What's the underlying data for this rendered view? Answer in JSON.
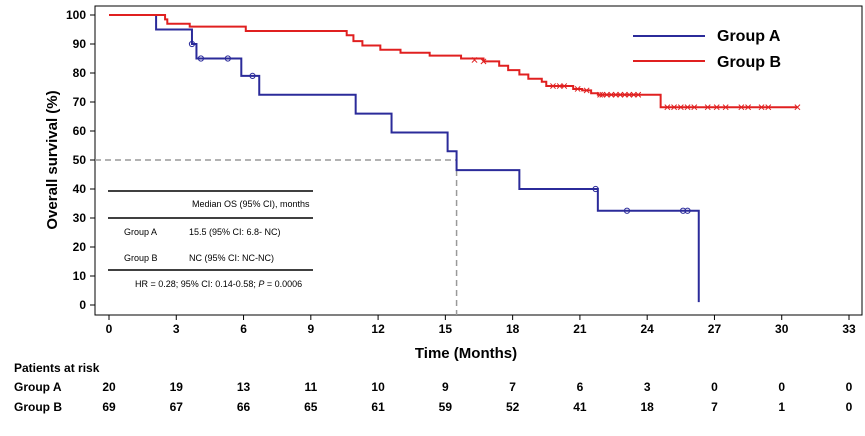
{
  "chart_data": {
    "type": "line",
    "subtype": "kaplan-meier",
    "xlabel": "Time (Months)",
    "ylabel": "Overall survival (%)",
    "xlim": [
      0,
      33
    ],
    "ylim": [
      0,
      100
    ],
    "x_ticks": [
      0,
      3,
      6,
      9,
      12,
      15,
      18,
      21,
      24,
      27,
      30,
      33
    ],
    "y_ticks": [
      0,
      10,
      20,
      30,
      40,
      50,
      60,
      70,
      80,
      90,
      100
    ],
    "grid": false,
    "legend_position": "top-right",
    "median_reference": {
      "y": 50,
      "x": 15.5
    },
    "series": [
      {
        "name": "Group A",
        "color": "#2b2b9a",
        "steps": [
          [
            0,
            100
          ],
          [
            2.1,
            95
          ],
          [
            3.7,
            90
          ],
          [
            3.9,
            85
          ],
          [
            5.9,
            79
          ],
          [
            6.7,
            72.5
          ],
          [
            11.0,
            66
          ],
          [
            12.6,
            59.5
          ],
          [
            15.1,
            53
          ],
          [
            15.5,
            46.5
          ],
          [
            18.3,
            40
          ],
          [
            21.8,
            32.5
          ],
          [
            26.3,
            32.5
          ],
          [
            26.3,
            1
          ]
        ],
        "censored": [
          [
            3.7,
            90
          ],
          [
            4.1,
            85
          ],
          [
            5.3,
            85
          ],
          [
            6.4,
            79
          ],
          [
            21.7,
            40
          ],
          [
            23.1,
            32.5
          ],
          [
            25.6,
            32.5
          ],
          [
            25.8,
            32.5
          ]
        ]
      },
      {
        "name": "Group B",
        "color": "#e02020",
        "steps": [
          [
            0,
            100
          ],
          [
            2.5,
            98.5
          ],
          [
            2.6,
            97
          ],
          [
            3.6,
            96
          ],
          [
            6.1,
            94.5
          ],
          [
            10.6,
            93
          ],
          [
            10.9,
            91
          ],
          [
            11.3,
            89.5
          ],
          [
            12.1,
            88
          ],
          [
            13.0,
            87
          ],
          [
            14.3,
            86
          ],
          [
            15.7,
            85
          ],
          [
            16.7,
            84
          ],
          [
            17.4,
            82.5
          ],
          [
            17.8,
            81
          ],
          [
            18.3,
            79.5
          ],
          [
            18.7,
            78
          ],
          [
            19.3,
            77
          ],
          [
            19.5,
            75.5
          ],
          [
            20.7,
            74.5
          ],
          [
            21.1,
            74
          ],
          [
            21.5,
            73
          ],
          [
            21.8,
            72.5
          ],
          [
            24.6,
            72.5
          ],
          [
            24.6,
            68.2
          ],
          [
            30.7,
            68.2
          ]
        ],
        "censored": [
          [
            16.3,
            84.5
          ],
          [
            16.7,
            84
          ],
          [
            19.8,
            75.5
          ],
          [
            20.1,
            75.5
          ],
          [
            20.3,
            75.5
          ],
          [
            20.9,
            74.5
          ],
          [
            21.3,
            74
          ],
          [
            21.9,
            72.5
          ],
          [
            22.0,
            72.5
          ],
          [
            22.2,
            72.5
          ],
          [
            22.4,
            72.5
          ],
          [
            22.6,
            72.5
          ],
          [
            22.8,
            72.5
          ],
          [
            23.0,
            72.5
          ],
          [
            23.2,
            72.5
          ],
          [
            23.4,
            72.5
          ],
          [
            23.6,
            72.5
          ],
          [
            24.9,
            68.2
          ],
          [
            25.2,
            68.2
          ],
          [
            25.5,
            68.2
          ],
          [
            25.8,
            68.2
          ],
          [
            26.1,
            68.2
          ],
          [
            26.7,
            68.2
          ],
          [
            27.1,
            68.2
          ],
          [
            27.5,
            68.2
          ],
          [
            28.2,
            68.2
          ],
          [
            28.5,
            68.2
          ],
          [
            29.1,
            68.2
          ],
          [
            29.4,
            68.2
          ],
          [
            30.7,
            68.2
          ]
        ]
      }
    ],
    "inset_table": {
      "header": "Median OS (95% CI), months",
      "rows": [
        {
          "group": "Group A",
          "value": "15.5 (95% CI: 6.8- NC)"
        },
        {
          "group": "Group B",
          "value": "NC (95% CI: NC-NC)"
        }
      ],
      "footer_prefix": "HR = 0.28; 95% CI: 0.14-0.58; ",
      "footer_p_label": "P",
      "footer_suffix": " = 0.0006"
    },
    "risk_table": {
      "title": "Patients at risk",
      "times": [
        0,
        3,
        6,
        9,
        12,
        15,
        18,
        21,
        24,
        27,
        30,
        33
      ],
      "rows": [
        {
          "name": "Group A",
          "counts": [
            "20",
            "19",
            "13",
            "11",
            "10",
            "9",
            "7",
            "6",
            "3",
            "0",
            "0",
            "0"
          ]
        },
        {
          "name": "Group B",
          "counts": [
            "69",
            "67",
            "66",
            "65",
            "61",
            "59",
            "52",
            "41",
            "18",
            "7",
            "1",
            "0"
          ]
        }
      ]
    }
  }
}
